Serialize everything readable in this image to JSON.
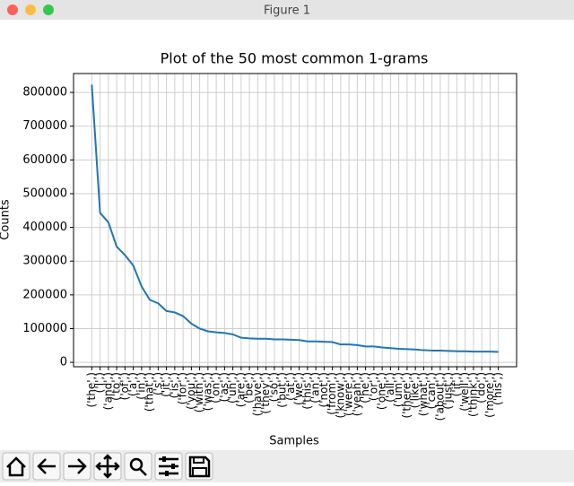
{
  "window": {
    "title": "Figure 1"
  },
  "chart_data": {
    "type": "line",
    "title": "Plot of the 50 most common 1-grams",
    "xlabel": "Samples",
    "ylabel": "Counts",
    "categories": [
      "('the',)",
      "('I',)",
      "('and',)",
      "('to',)",
      "('of',)",
      "('a',)",
      "('in',)",
      "('that',)",
      "('s',)",
      "('it',)",
      "('is',)",
      "('for',)",
      "('you',)",
      "('with',)",
      "('was',)",
      "('on',)",
      "('as',)",
      "('uh',)",
      "('are',)",
      "('be',)",
      "('have',)",
      "('they',)",
      "('so',)",
      "('but',)",
      "('at',)",
      "('we',)",
      "('this',)",
      "('an',)",
      "('not',)",
      "('from',)",
      "('know',)",
      "('were',)",
      "('yeah',)",
      "('he',)",
      "('or',)",
      "('one',)",
      "('all',)",
      "('um',)",
      "('there',)",
      "('like',)",
      "('what',)",
      "('can',)",
      "('about',)",
      "('just',)",
      "('if',)",
      "('well',)",
      "('think',)",
      "('do',)",
      "('more',)",
      "('his',)"
    ],
    "series": [
      {
        "name": "Counts",
        "color": "#1f77b4",
        "values": [
          823000,
          443000,
          415000,
          343000,
          318000,
          287000,
          225000,
          185000,
          175000,
          152000,
          148000,
          137000,
          115000,
          100000,
          92000,
          89000,
          87000,
          83000,
          73000,
          71000,
          70000,
          70000,
          68000,
          68000,
          67000,
          66000,
          62000,
          62000,
          61000,
          60000,
          53000,
          53000,
          51000,
          47000,
          47000,
          44000,
          42000,
          40000,
          39000,
          38000,
          36000,
          35000,
          35000,
          34000,
          33000,
          33000,
          32000,
          32000,
          32000,
          31000
        ]
      }
    ],
    "ylim": [
      -13000,
      856000
    ],
    "yticks": [
      0,
      100000,
      200000,
      300000,
      400000,
      500000,
      600000,
      700000,
      800000
    ],
    "grid": true
  }
}
